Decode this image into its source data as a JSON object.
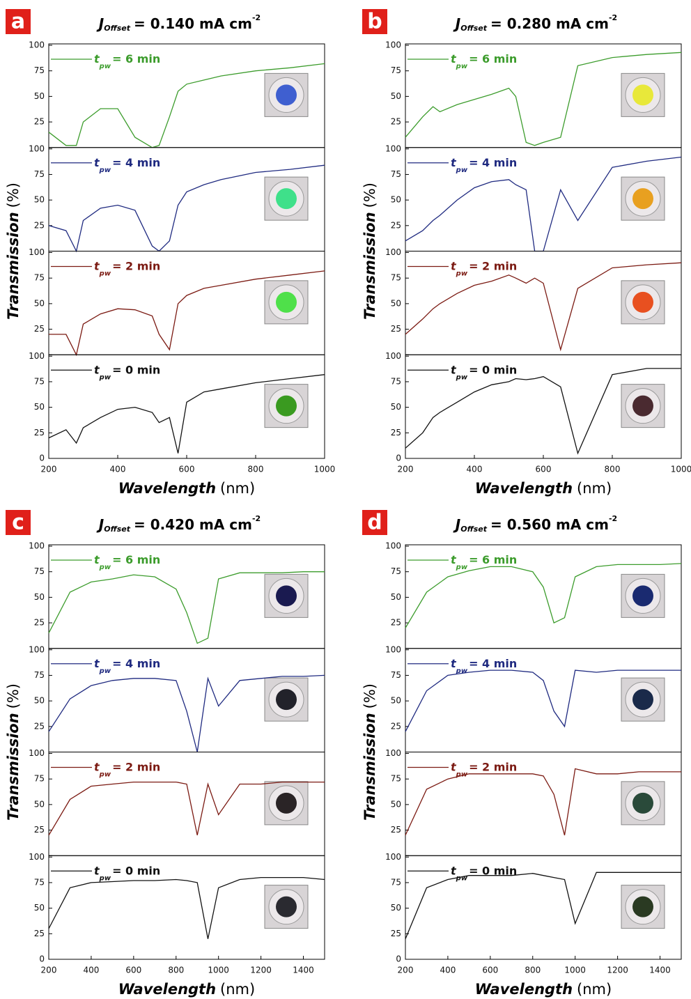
{
  "chart_data": [
    {
      "type": "line",
      "panel_label": "a",
      "title": {
        "symbol": "J",
        "subscript": "Offset",
        "text": "= 0.140 mA cm",
        "superscript": "-2"
      },
      "x_label": {
        "text": "Wavelength",
        "unit": "(nm)"
      },
      "y_label": {
        "text": "Transmission",
        "unit": "(%)"
      },
      "x": [
        200,
        250,
        280,
        300,
        350,
        400,
        450,
        500,
        520,
        550,
        575,
        600,
        650,
        700,
        800,
        900,
        1000
      ],
      "xlim": [
        200,
        1000
      ],
      "xticks": [
        200,
        400,
        600,
        800,
        1000
      ],
      "ylim": [
        0,
        100
      ],
      "yticks": [
        0,
        25,
        50,
        75,
        100
      ],
      "series": [
        {
          "name": {
            "symbol": "t",
            "subscript": "pw",
            "text": "= 6 min"
          },
          "color": "#3c9c2c",
          "inset_color": "#3f5fd0",
          "values": [
            15,
            2,
            2,
            25,
            38,
            38,
            10,
            0,
            2,
            30,
            55,
            62,
            66,
            70,
            75,
            78,
            82
          ]
        },
        {
          "name": {
            "symbol": "t",
            "subscript": "pw",
            "text": "= 4 min"
          },
          "color": "#1f2a80",
          "inset_color": "#3fe08a",
          "values": [
            25,
            20,
            0,
            30,
            42,
            45,
            40,
            5,
            0,
            10,
            45,
            58,
            65,
            70,
            77,
            80,
            84
          ]
        },
        {
          "name": {
            "symbol": "t",
            "subscript": "pw",
            "text": "= 2 min"
          },
          "color": "#7b1a12",
          "inset_color": "#4fe04a",
          "values": [
            20,
            20,
            0,
            30,
            40,
            45,
            44,
            38,
            20,
            5,
            50,
            58,
            65,
            68,
            74,
            78,
            82
          ]
        },
        {
          "name": {
            "symbol": "t",
            "subscript": "pw",
            "text": "= 0 min"
          },
          "color": "#111111",
          "inset_color": "#3a9a20",
          "values": [
            20,
            28,
            15,
            30,
            40,
            48,
            50,
            45,
            35,
            40,
            5,
            55,
            65,
            68,
            74,
            78,
            82
          ]
        }
      ]
    },
    {
      "type": "line",
      "panel_label": "b",
      "title": {
        "symbol": "J",
        "subscript": "Offset",
        "text": "= 0.280 mA cm",
        "superscript": "-2"
      },
      "x_label": {
        "text": "Wavelength",
        "unit": "(nm)"
      },
      "y_label": {
        "text": "Transmission",
        "unit": "(%)"
      },
      "x": [
        200,
        250,
        280,
        300,
        350,
        400,
        450,
        500,
        520,
        550,
        575,
        600,
        650,
        700,
        800,
        900,
        1000
      ],
      "xlim": [
        200,
        1000
      ],
      "xticks": [
        200,
        400,
        600,
        800,
        1000
      ],
      "ylim": [
        0,
        100
      ],
      "yticks": [
        0,
        25,
        50,
        75,
        100
      ],
      "series": [
        {
          "name": {
            "symbol": "t",
            "subscript": "pw",
            "text": "= 6 min"
          },
          "color": "#3c9c2c",
          "inset_color": "#e8e83a",
          "values": [
            10,
            30,
            40,
            35,
            42,
            47,
            52,
            58,
            50,
            5,
            2,
            5,
            10,
            80,
            88,
            91,
            93
          ]
        },
        {
          "name": {
            "symbol": "t",
            "subscript": "pw",
            "text": "= 4 min"
          },
          "color": "#1f2a80",
          "inset_color": "#e8a020",
          "values": [
            10,
            20,
            30,
            35,
            50,
            62,
            68,
            70,
            65,
            60,
            0,
            0,
            60,
            30,
            82,
            88,
            92
          ]
        },
        {
          "name": {
            "symbol": "t",
            "subscript": "pw",
            "text": "= 2 min"
          },
          "color": "#7b1a12",
          "inset_color": "#e85020",
          "values": [
            20,
            35,
            45,
            50,
            60,
            68,
            72,
            78,
            75,
            70,
            75,
            70,
            5,
            65,
            85,
            88,
            90
          ]
        },
        {
          "name": {
            "symbol": "t",
            "subscript": "pw",
            "text": "= 0 min"
          },
          "color": "#111111",
          "inset_color": "#4a2a30",
          "values": [
            10,
            25,
            40,
            45,
            55,
            65,
            72,
            75,
            78,
            77,
            78,
            80,
            70,
            5,
            82,
            88,
            88
          ]
        }
      ]
    },
    {
      "type": "line",
      "panel_label": "c",
      "title": {
        "symbol": "J",
        "subscript": "Offset",
        "text": "= 0.420 mA cm",
        "superscript": "-2"
      },
      "x_label": {
        "text": "Wavelength",
        "unit": "(nm)"
      },
      "y_label": {
        "text": "Transmission",
        "unit": "(%)"
      },
      "x": [
        200,
        300,
        400,
        500,
        600,
        700,
        800,
        850,
        900,
        950,
        1000,
        1100,
        1200,
        1300,
        1400,
        1500
      ],
      "xlim": [
        200,
        1500
      ],
      "xticks": [
        200,
        400,
        600,
        800,
        1000,
        1200,
        1400
      ],
      "ylim": [
        0,
        100
      ],
      "yticks": [
        0,
        25,
        50,
        75,
        100
      ],
      "series": [
        {
          "name": {
            "symbol": "t",
            "subscript": "pw",
            "text": "= 6 min"
          },
          "color": "#3c9c2c",
          "inset_color": "#1a1a50",
          "values": [
            15,
            55,
            65,
            68,
            72,
            70,
            58,
            35,
            5,
            10,
            68,
            74,
            74,
            74,
            75,
            75
          ]
        },
        {
          "name": {
            "symbol": "t",
            "subscript": "pw",
            "text": "= 4 min"
          },
          "color": "#1f2a80",
          "inset_color": "#22222a",
          "values": [
            20,
            52,
            65,
            70,
            72,
            72,
            70,
            40,
            0,
            72,
            45,
            70,
            72,
            74,
            74,
            75
          ]
        },
        {
          "name": {
            "symbol": "t",
            "subscript": "pw",
            "text": "= 2 min"
          },
          "color": "#7b1a12",
          "inset_color": "#2a2426",
          "values": [
            20,
            55,
            68,
            70,
            72,
            72,
            72,
            70,
            20,
            70,
            40,
            70,
            70,
            72,
            72,
            72
          ]
        },
        {
          "name": {
            "symbol": "t",
            "subscript": "pw",
            "text": "= 0 min"
          },
          "color": "#111111",
          "inset_color": "#2a2a30",
          "values": [
            30,
            70,
            75,
            76,
            77,
            77,
            78,
            77,
            75,
            20,
            70,
            78,
            80,
            80,
            80,
            78
          ]
        }
      ]
    },
    {
      "type": "line",
      "panel_label": "d",
      "title": {
        "symbol": "J",
        "subscript": "Offset",
        "text": "= 0.560 mA cm",
        "superscript": "-2"
      },
      "x_label": {
        "text": "Wavelength",
        "unit": "(nm)"
      },
      "y_label": {
        "text": "Transmission",
        "unit": "(%)"
      },
      "x": [
        200,
        300,
        400,
        500,
        600,
        700,
        800,
        850,
        900,
        950,
        1000,
        1100,
        1200,
        1300,
        1400,
        1500
      ],
      "xlim": [
        200,
        1500
      ],
      "xticks": [
        200,
        400,
        600,
        800,
        1000,
        1200,
        1400
      ],
      "ylim": [
        0,
        100
      ],
      "yticks": [
        0,
        25,
        50,
        75,
        100
      ],
      "series": [
        {
          "name": {
            "symbol": "t",
            "subscript": "pw",
            "text": "= 6 min"
          },
          "color": "#3c9c2c",
          "inset_color": "#1a2a70",
          "values": [
            20,
            55,
            70,
            76,
            80,
            80,
            75,
            60,
            25,
            30,
            70,
            80,
            82,
            82,
            82,
            83
          ]
        },
        {
          "name": {
            "symbol": "t",
            "subscript": "pw",
            "text": "= 4 min"
          },
          "color": "#1f2a80",
          "inset_color": "#1a2a4a",
          "values": [
            20,
            60,
            75,
            78,
            80,
            80,
            78,
            70,
            40,
            25,
            80,
            78,
            80,
            80,
            80,
            80
          ]
        },
        {
          "name": {
            "symbol": "t",
            "subscript": "pw",
            "text": "= 2 min"
          },
          "color": "#7b1a12",
          "inset_color": "#2a4a3a",
          "values": [
            20,
            65,
            75,
            80,
            80,
            80,
            80,
            78,
            60,
            20,
            85,
            80,
            80,
            82,
            82,
            82
          ]
        },
        {
          "name": {
            "symbol": "t",
            "subscript": "pw",
            "text": "= 0 min"
          },
          "color": "#111111",
          "inset_color": "#2a3a22",
          "values": [
            20,
            70,
            78,
            82,
            82,
            82,
            84,
            82,
            80,
            78,
            35,
            85,
            85,
            85,
            85,
            85
          ]
        }
      ]
    }
  ]
}
